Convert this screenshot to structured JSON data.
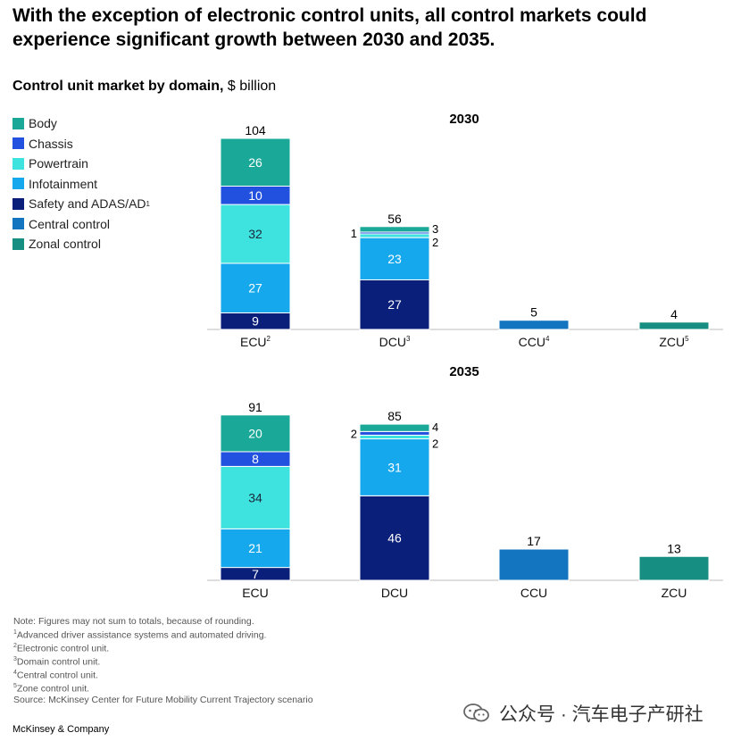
{
  "headline": "With the exception of electronic control units, all control markets could experience significant growth between 2030 and 2035.",
  "subtitle": {
    "bold": "Control unit market by domain,",
    "unit": "$ billion"
  },
  "colors": {
    "body": "#1aa898",
    "chassis": "#2251e0",
    "powertrain": "#3ee3e0",
    "infotainment": "#16a8ec",
    "safety": "#0a1f7a",
    "central": "#1374c0",
    "zonal": "#168e82",
    "axis": "#bdbdbd"
  },
  "legend": [
    {
      "key": "body",
      "label": "Body",
      "sup": ""
    },
    {
      "key": "chassis",
      "label": "Chassis",
      "sup": ""
    },
    {
      "key": "powertrain",
      "label": "Powertrain",
      "sup": ""
    },
    {
      "key": "infotainment",
      "label": "Infotainment",
      "sup": ""
    },
    {
      "key": "safety",
      "label": "Safety and ADAS/AD",
      "sup": "1"
    },
    {
      "key": "central",
      "label": "Central control",
      "sup": ""
    },
    {
      "key": "zonal",
      "label": "Zonal control",
      "sup": ""
    }
  ],
  "chart_data": [
    {
      "type": "bar",
      "stacked": true,
      "title": "2030",
      "categories": [
        {
          "label": "ECU",
          "sup": "2"
        },
        {
          "label": "DCU",
          "sup": "3"
        },
        {
          "label": "CCU",
          "sup": "4"
        },
        {
          "label": "ZCU",
          "sup": "5"
        }
      ],
      "totals": [
        104,
        56,
        5,
        4
      ],
      "stacks": [
        [
          {
            "series": "safety",
            "value": 9
          },
          {
            "series": "infotainment",
            "value": 27
          },
          {
            "series": "powertrain",
            "value": 32
          },
          {
            "series": "chassis",
            "value": 10
          },
          {
            "series": "body",
            "value": 26
          }
        ],
        [
          {
            "series": "safety",
            "value": 27
          },
          {
            "series": "infotainment",
            "value": 23
          },
          {
            "series": "powertrain",
            "value": 2
          },
          {
            "series": "chassis",
            "value": 1
          },
          {
            "series": "body",
            "value": 3
          }
        ],
        [
          {
            "series": "central",
            "value": 5
          }
        ],
        [
          {
            "series": "zonal",
            "value": 4
          }
        ]
      ],
      "ylim": [
        0,
        104
      ]
    },
    {
      "type": "bar",
      "stacked": true,
      "title": "2035",
      "categories": [
        {
          "label": "ECU",
          "sup": ""
        },
        {
          "label": "DCU",
          "sup": ""
        },
        {
          "label": "CCU",
          "sup": ""
        },
        {
          "label": "ZCU",
          "sup": ""
        }
      ],
      "totals": [
        91,
        85,
        17,
        13
      ],
      "stacks": [
        [
          {
            "series": "safety",
            "value": 7
          },
          {
            "series": "infotainment",
            "value": 21
          },
          {
            "series": "powertrain",
            "value": 34
          },
          {
            "series": "chassis",
            "value": 8
          },
          {
            "series": "body",
            "value": 20
          }
        ],
        [
          {
            "series": "safety",
            "value": 46
          },
          {
            "series": "infotainment",
            "value": 31
          },
          {
            "series": "powertrain",
            "value": 2
          },
          {
            "series": "chassis",
            "value": 2
          },
          {
            "series": "body",
            "value": 4
          }
        ],
        [
          {
            "series": "central",
            "value": 17
          }
        ],
        [
          {
            "series": "zonal",
            "value": 13
          }
        ]
      ],
      "ylim": [
        0,
        104
      ]
    }
  ],
  "notes": [
    {
      "sup": "",
      "text": "Note: Figures may not sum to totals, because of rounding."
    },
    {
      "sup": "1",
      "text": "Advanced driver assistance systems and automated driving."
    },
    {
      "sup": "2",
      "text": "Electronic control unit."
    },
    {
      "sup": "3",
      "text": "Domain control unit."
    },
    {
      "sup": "4",
      "text": "Central control unit."
    },
    {
      "sup": "5",
      "text": "Zone control unit."
    },
    {
      "sup": "",
      "text": "Source: McKinsey Center for Future Mobility Current Trajectory scenario"
    }
  ],
  "brand": "McKinsey & Company",
  "watermark": {
    "icon": "wechat-icon",
    "text": "公众号 · 汽车电子产研社"
  }
}
